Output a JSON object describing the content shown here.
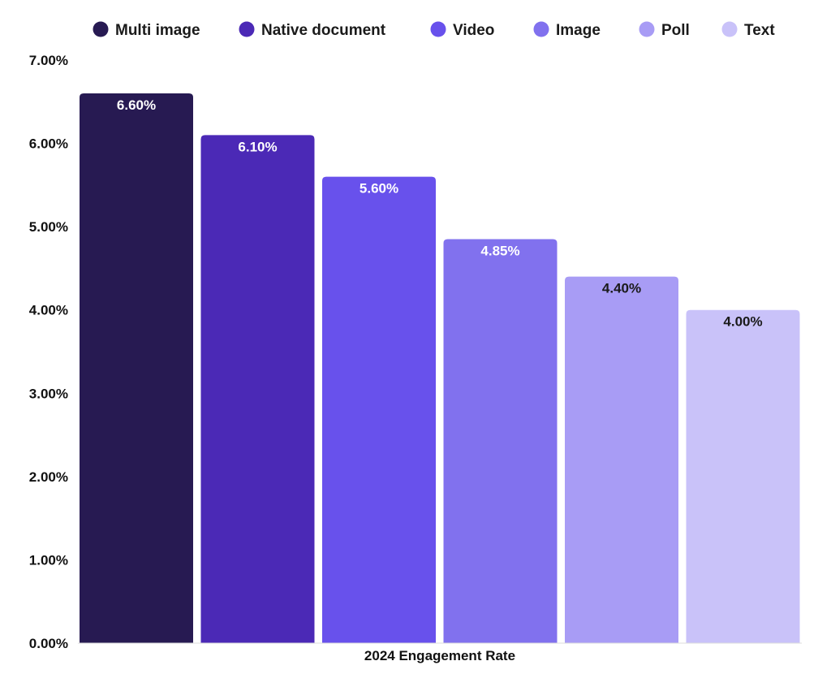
{
  "chart_data": {
    "type": "bar",
    "xlabel": "2024 Engagement Rate",
    "ylabel": "",
    "ylim": [
      0,
      7
    ],
    "yticks": [
      "0.00%",
      "1.00%",
      "2.00%",
      "3.00%",
      "4.00%",
      "5.00%",
      "6.00%",
      "7.00%"
    ],
    "grid": false,
    "legend_position": "top",
    "series": [
      {
        "name": "Multi image",
        "value": 6.6,
        "label": "6.60%",
        "color": "#271a52",
        "label_color": "#ffffff"
      },
      {
        "name": "Native document",
        "value": 6.1,
        "label": "6.10%",
        "color": "#4b29b6",
        "label_color": "#ffffff"
      },
      {
        "name": "Video",
        "value": 5.6,
        "label": "5.60%",
        "color": "#6851ec",
        "label_color": "#ffffff"
      },
      {
        "name": "Image",
        "value": 4.85,
        "label": "4.85%",
        "color": "#8171ee",
        "label_color": "#ffffff"
      },
      {
        "name": "Poll",
        "value": 4.4,
        "label": "4.40%",
        "color": "#a89cf5",
        "label_color": "#1a1a1a"
      },
      {
        "name": "Text",
        "value": 4.0,
        "label": "4.00%",
        "color": "#c9c2f9",
        "label_color": "#1a1a1a"
      }
    ]
  }
}
